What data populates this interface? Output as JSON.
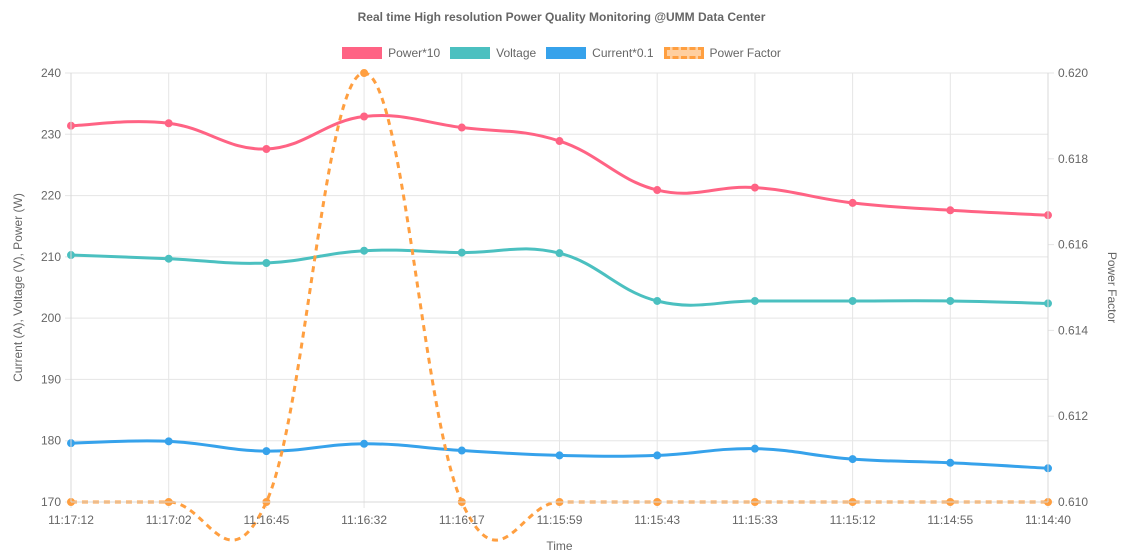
{
  "chart_data": {
    "type": "line",
    "title": "Real time High resolution Power Quality Monitoring @UMM Data Center",
    "xlabel": "Time",
    "ylabel_left": "Current (A), Voltage (V), Power (W)",
    "ylabel_right": "Power Factor",
    "categories": [
      "11:17:12",
      "11:17:02",
      "11:16:45",
      "11:16:32",
      "11:16:17",
      "11:15:59",
      "11:15:43",
      "11:15:33",
      "11:15:12",
      "11:14:55",
      "11:14:40"
    ],
    "y_left": {
      "min": 170,
      "max": 240,
      "step": 10,
      "ticks": [
        "170",
        "180",
        "190",
        "200",
        "210",
        "220",
        "230",
        "240"
      ]
    },
    "y_right": {
      "min": 0.61,
      "max": 0.62,
      "step": 0.002,
      "ticks": [
        "0.610",
        "0.612",
        "0.614",
        "0.616",
        "0.618",
        "0.620"
      ]
    },
    "grid": true,
    "legend_position": "top",
    "series": [
      {
        "name": "Power*10",
        "axis": "left",
        "color": "#ff6384",
        "dashed": false,
        "values": [
          231.4,
          231.8,
          227.6,
          232.9,
          231.1,
          228.9,
          220.9,
          221.3,
          218.8,
          217.6,
          216.8
        ]
      },
      {
        "name": "Voltage",
        "axis": "left",
        "color": "#4bc0c0",
        "dashed": false,
        "values": [
          210.3,
          209.7,
          209.0,
          211.0,
          210.7,
          210.6,
          202.8,
          202.8,
          202.8,
          202.8,
          202.4
        ]
      },
      {
        "name": "Current*0.1",
        "axis": "left",
        "color": "#36a2eb",
        "dashed": false,
        "values": [
          179.6,
          179.9,
          178.3,
          179.5,
          178.4,
          177.6,
          177.6,
          178.7,
          177.0,
          176.4,
          175.5
        ]
      },
      {
        "name": "Power Factor",
        "axis": "right",
        "color": "#ff9f40",
        "dashed": true,
        "values": [
          0.61,
          0.61,
          0.61,
          0.62,
          0.61,
          0.61,
          0.61,
          0.61,
          0.61,
          0.61,
          0.61
        ]
      }
    ]
  }
}
